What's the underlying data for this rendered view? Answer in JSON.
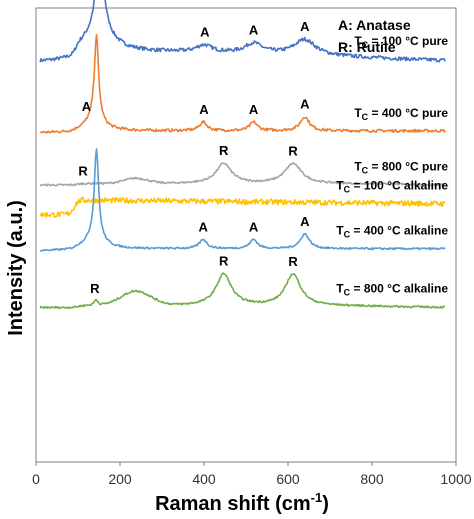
{
  "chart_data": {
    "type": "line",
    "xlabel_main": "Raman shift (cm",
    "xlabel_sup": "-1",
    "xlabel_end": ")",
    "ylabel": "Intensity (a.u.)",
    "xlim": [
      0,
      1000
    ],
    "xticks": [
      "0",
      "200",
      "400",
      "600",
      "800",
      "1000"
    ],
    "legend": [
      "A: Anatase",
      "R: Rutile"
    ],
    "series": [
      {
        "name": "Tc = 100 °C pure",
        "label_pre": "T",
        "label_sub": "C",
        "label_post": " = 100 °C pure",
        "color": "#4472c4",
        "baseline": 0.88,
        "scale": 0.155,
        "noise": 0.004,
        "kind": "anatase_broad",
        "peak_labels": [
          {
            "text": "A",
            "x": 152
          },
          {
            "text": "A",
            "x": 402
          },
          {
            "text": "A",
            "x": 518
          },
          {
            "text": "A",
            "x": 640
          }
        ]
      },
      {
        "name": "Tc = 400 °C pure",
        "label_pre": "T",
        "label_sub": "C",
        "label_post": " = 400 °C pure",
        "color": "#ed7d31",
        "baseline": 0.725,
        "scale": 0.147,
        "noise": 0.003,
        "kind": "anatase_sharp",
        "peak_labels": [
          {
            "text": "A",
            "x": 120
          },
          {
            "text": "A",
            "x": 400
          },
          {
            "text": "A",
            "x": 518
          },
          {
            "text": "A",
            "x": 640
          }
        ]
      },
      {
        "name": "Tc = 800 °C pure",
        "label_pre": "T",
        "label_sub": "C",
        "label_post": " = 800 °C pure",
        "color": "#a5a5a5",
        "baseline": 0.61,
        "scale": 0.04,
        "noise": 0.002,
        "kind": "rutile",
        "peak_labels": [
          {
            "text": "R",
            "x": 112
          },
          {
            "text": "R",
            "x": 447
          },
          {
            "text": "R",
            "x": 612
          }
        ]
      },
      {
        "name": "Tc = 100 °C alkaline",
        "label_pre": "T",
        "label_sub": "C",
        "label_post": " = 100 °C alkaline",
        "color": "#ffc000",
        "baseline": 0.545,
        "scale": 0.02,
        "noise": 0.006,
        "kind": "amorphous",
        "peak_labels": []
      },
      {
        "name": "Tc = 400 °C alkaline",
        "label_pre": "T",
        "label_sub": "C",
        "label_post": " = 400 °C alkaline",
        "color": "#5b9bd5",
        "baseline": 0.465,
        "scale": 0.155,
        "noise": 0.002,
        "kind": "anatase_sharp",
        "peak_labels": [
          {
            "text": "A",
            "x": 398
          },
          {
            "text": "A",
            "x": 518
          },
          {
            "text": "A",
            "x": 640
          }
        ]
      },
      {
        "name": "Tc = 800 °C alkaline",
        "label_pre": "T",
        "label_sub": "C",
        "label_post": " = 800 °C alkaline",
        "color": "#70ad47",
        "baseline": 0.34,
        "scale": 0.042,
        "noise": 0.002,
        "kind": "rutile_alk",
        "peak_labels": [
          {
            "text": "R",
            "x": 140
          },
          {
            "text": "R",
            "x": 447
          },
          {
            "text": "R",
            "x": 612
          }
        ]
      }
    ]
  }
}
